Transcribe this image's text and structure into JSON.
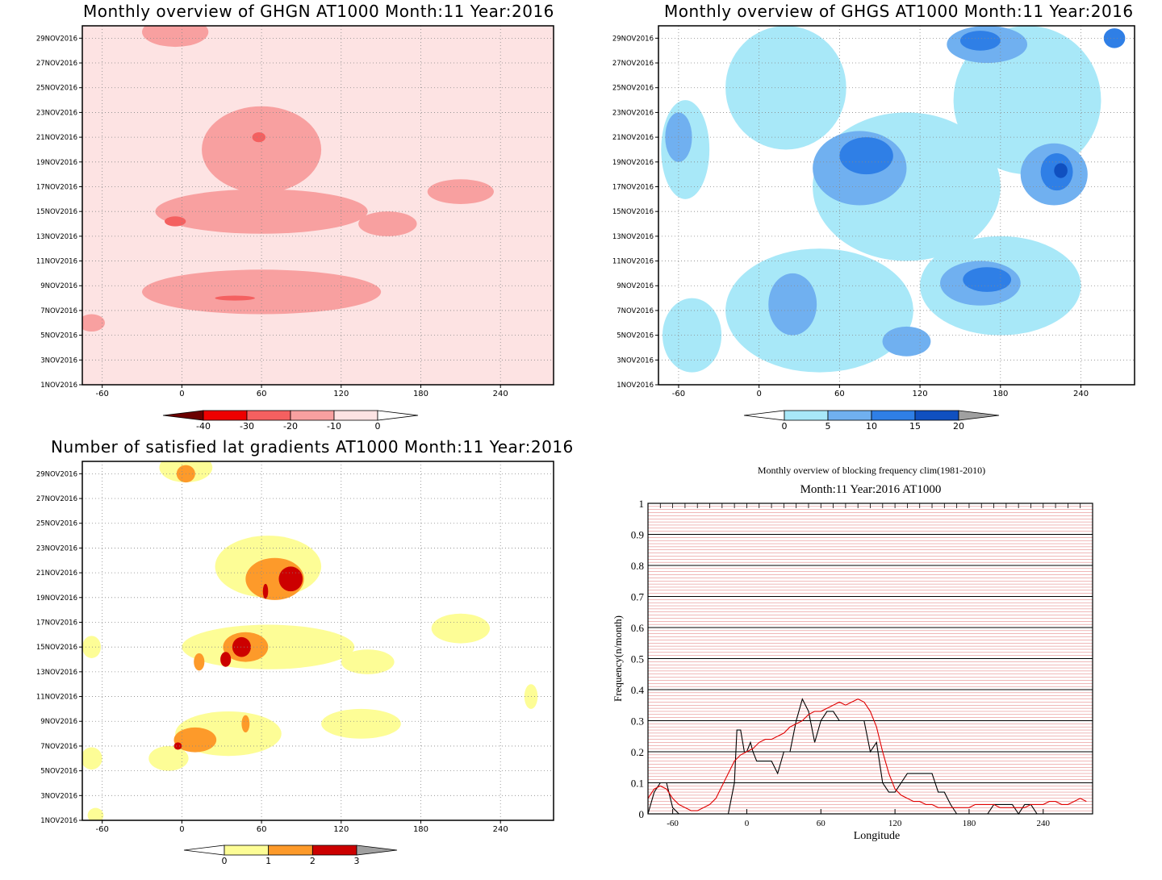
{
  "chart_data": [
    {
      "type": "heatmap",
      "title": "Monthly overview of GHGN AT1000 Month:11 Year:2016",
      "x_ticks": [
        "-60",
        "0",
        "60",
        "120",
        "180",
        "240"
      ],
      "y_ticks": [
        "1NOV2016",
        "3NOV2016",
        "5NOV2016",
        "7NOV2016",
        "9NOV2016",
        "11NOV2016",
        "13NOV2016",
        "15NOV2016",
        "17NOV2016",
        "19NOV2016",
        "21NOV2016",
        "23NOV2016",
        "25NOV2016",
        "27NOV2016",
        "29NOV2016"
      ],
      "xlim": [
        -75,
        280
      ],
      "ylim": [
        1,
        30
      ],
      "colorbar": {
        "ticks": [
          "-40",
          "-30",
          "-20",
          "-10",
          "0"
        ],
        "colors": [
          "#6b0000",
          "#ee0000",
          "#f46060",
          "#f8a0a0",
          "#fde3e3",
          "#ffffff"
        ]
      },
      "regions": [
        {
          "level": "-10",
          "color": "#f8a0a0",
          "cx": 60,
          "cy": 20,
          "rx": 45,
          "ry": 3.5
        },
        {
          "level": "-10",
          "color": "#f8a0a0",
          "cx": 60,
          "cy": 15,
          "rx": 80,
          "ry": 1.8
        },
        {
          "level": "-10",
          "color": "#f8a0a0",
          "cx": 60,
          "cy": 8.5,
          "rx": 90,
          "ry": 1.8
        },
        {
          "level": "-10",
          "color": "#f8a0a0",
          "cx": 210,
          "cy": 16.6,
          "rx": 25,
          "ry": 1
        },
        {
          "level": "-10",
          "color": "#f8a0a0",
          "cx": 155,
          "cy": 14,
          "rx": 22,
          "ry": 1
        },
        {
          "level": "-10",
          "color": "#f8a0a0",
          "cx": -5,
          "cy": 29.5,
          "rx": 25,
          "ry": 1.2
        },
        {
          "level": "-10",
          "color": "#f8a0a0",
          "cx": -68,
          "cy": 6,
          "rx": 10,
          "ry": 0.7
        },
        {
          "level": "-20",
          "color": "#f46060",
          "cx": -5,
          "cy": 14.2,
          "rx": 8,
          "ry": 0.4
        },
        {
          "level": "-20",
          "color": "#f46060",
          "cx": 58,
          "cy": 21,
          "rx": 5,
          "ry": 0.4
        },
        {
          "level": "-20",
          "color": "#f46060",
          "cx": 40,
          "cy": 8,
          "rx": 15,
          "ry": 0.2
        }
      ]
    },
    {
      "type": "heatmap",
      "title": "Monthly overview of GHGS AT1000 Month:11 Year:2016",
      "x_ticks": [
        "-60",
        "0",
        "60",
        "120",
        "180",
        "240"
      ],
      "y_ticks": [
        "1NOV2016",
        "3NOV2016",
        "5NOV2016",
        "7NOV2016",
        "9NOV2016",
        "11NOV2016",
        "13NOV2016",
        "15NOV2016",
        "17NOV2016",
        "19NOV2016",
        "21NOV2016",
        "23NOV2016",
        "25NOV2016",
        "27NOV2016",
        "29NOV2016"
      ],
      "xlim": [
        -75,
        280
      ],
      "ylim": [
        1,
        30
      ],
      "colorbar": {
        "ticks": [
          "0",
          "5",
          "10",
          "15",
          "20"
        ],
        "colors": [
          "#ffffff",
          "#a8e8f8",
          "#70b0f0",
          "#2f7fe6",
          "#1050c0",
          "#a0a0a0"
        ]
      },
      "regions": [
        {
          "level": "5",
          "color": "#a8e8f8",
          "cx": 20,
          "cy": 25,
          "rx": 45,
          "ry": 5
        },
        {
          "level": "5",
          "color": "#a8e8f8",
          "cx": 110,
          "cy": 17,
          "rx": 70,
          "ry": 6
        },
        {
          "level": "5",
          "color": "#a8e8f8",
          "cx": 45,
          "cy": 7,
          "rx": 70,
          "ry": 5
        },
        {
          "level": "5",
          "color": "#a8e8f8",
          "cx": 200,
          "cy": 24,
          "rx": 55,
          "ry": 6
        },
        {
          "level": "5",
          "color": "#a8e8f8",
          "cx": 180,
          "cy": 9,
          "rx": 60,
          "ry": 4
        },
        {
          "level": "5",
          "color": "#a8e8f8",
          "cx": -55,
          "cy": 20,
          "rx": 18,
          "ry": 4
        },
        {
          "level": "5",
          "color": "#a8e8f8",
          "cx": -50,
          "cy": 5,
          "rx": 22,
          "ry": 3
        },
        {
          "level": "10",
          "color": "#70b0f0",
          "cx": 75,
          "cy": 18.5,
          "rx": 35,
          "ry": 3
        },
        {
          "level": "10",
          "color": "#70b0f0",
          "cx": 25,
          "cy": 7.5,
          "rx": 18,
          "ry": 2.5
        },
        {
          "level": "10",
          "color": "#70b0f0",
          "cx": 165,
          "cy": 9.2,
          "rx": 30,
          "ry": 1.8
        },
        {
          "level": "10",
          "color": "#70b0f0",
          "cx": 220,
          "cy": 18,
          "rx": 25,
          "ry": 2.5
        },
        {
          "level": "10",
          "color": "#70b0f0",
          "cx": 170,
          "cy": 28.5,
          "rx": 30,
          "ry": 1.5
        },
        {
          "level": "10",
          "color": "#70b0f0",
          "cx": 110,
          "cy": 4.5,
          "rx": 18,
          "ry": 1.2
        },
        {
          "level": "10",
          "color": "#70b0f0",
          "cx": -60,
          "cy": 21,
          "rx": 10,
          "ry": 2
        },
        {
          "level": "15",
          "color": "#2f7fe6",
          "cx": 80,
          "cy": 19.5,
          "rx": 20,
          "ry": 1.5
        },
        {
          "level": "15",
          "color": "#2f7fe6",
          "cx": 170,
          "cy": 9.5,
          "rx": 18,
          "ry": 1
        },
        {
          "level": "15",
          "color": "#2f7fe6",
          "cx": 222,
          "cy": 18.2,
          "rx": 12,
          "ry": 1.5
        },
        {
          "level": "15",
          "color": "#2f7fe6",
          "cx": 165,
          "cy": 28.8,
          "rx": 15,
          "ry": 0.8
        },
        {
          "level": "15",
          "color": "#2f7fe6",
          "cx": 265,
          "cy": 29,
          "rx": 8,
          "ry": 0.8
        },
        {
          "level": "20",
          "color": "#1050c0",
          "cx": 225,
          "cy": 18.3,
          "rx": 5,
          "ry": 0.6
        }
      ]
    },
    {
      "type": "heatmap",
      "title": "Number of satisfied lat gradients AT1000 Month:11 Year:2016",
      "x_ticks": [
        "-60",
        "0",
        "60",
        "120",
        "180",
        "240"
      ],
      "y_ticks": [
        "1NOV2016",
        "3NOV2016",
        "5NOV2016",
        "7NOV2016",
        "9NOV2016",
        "11NOV2016",
        "13NOV2016",
        "15NOV2016",
        "17NOV2016",
        "19NOV2016",
        "21NOV2016",
        "23NOV2016",
        "25NOV2016",
        "27NOV2016",
        "29NOV2016"
      ],
      "xlim": [
        -75,
        280
      ],
      "ylim": [
        1,
        30
      ],
      "colorbar": {
        "ticks": [
          "0",
          "1",
          "2",
          "3"
        ],
        "colors": [
          "#ffffff",
          "#fdfd96",
          "#fd9a2a",
          "#cc0000",
          "#a0a0a0"
        ]
      },
      "regions": [
        {
          "level": "1",
          "color": "#fdfd96",
          "cx": 3,
          "cy": 29.5,
          "rx": 20,
          "ry": 1.2
        },
        {
          "level": "1",
          "color": "#fdfd96",
          "cx": 65,
          "cy": 21.5,
          "rx": 40,
          "ry": 2.5
        },
        {
          "level": "1",
          "color": "#fdfd96",
          "cx": 65,
          "cy": 15,
          "rx": 65,
          "ry": 1.8
        },
        {
          "level": "1",
          "color": "#fdfd96",
          "cx": 140,
          "cy": 13.8,
          "rx": 20,
          "ry": 1
        },
        {
          "level": "1",
          "color": "#fdfd96",
          "cx": 210,
          "cy": 16.5,
          "rx": 22,
          "ry": 1.2
        },
        {
          "level": "1",
          "color": "#fdfd96",
          "cx": 35,
          "cy": 8,
          "rx": 40,
          "ry": 1.8
        },
        {
          "level": "1",
          "color": "#fdfd96",
          "cx": -10,
          "cy": 6,
          "rx": 15,
          "ry": 1
        },
        {
          "level": "1",
          "color": "#fdfd96",
          "cx": 135,
          "cy": 8.8,
          "rx": 30,
          "ry": 1.2
        },
        {
          "level": "1",
          "color": "#fdfd96",
          "cx": -68,
          "cy": 6,
          "rx": 8,
          "ry": 0.9
        },
        {
          "level": "1",
          "color": "#fdfd96",
          "cx": -68,
          "cy": 15,
          "rx": 7,
          "ry": 0.9
        },
        {
          "level": "1",
          "color": "#fdfd96",
          "cx": 263,
          "cy": 11,
          "rx": 5,
          "ry": 1
        },
        {
          "level": "1",
          "color": "#fdfd96",
          "cx": -65,
          "cy": 1.4,
          "rx": 6,
          "ry": 0.6
        },
        {
          "level": "2",
          "color": "#fd9a2a",
          "cx": 70,
          "cy": 20.5,
          "rx": 22,
          "ry": 1.7
        },
        {
          "level": "2",
          "color": "#fd9a2a",
          "cx": 48,
          "cy": 15,
          "rx": 17,
          "ry": 1.2
        },
        {
          "level": "2",
          "color": "#fd9a2a",
          "cx": 3,
          "cy": 29,
          "rx": 7,
          "ry": 0.7
        },
        {
          "level": "2",
          "color": "#fd9a2a",
          "cx": 10,
          "cy": 7.5,
          "rx": 16,
          "ry": 1
        },
        {
          "level": "2",
          "color": "#fd9a2a",
          "cx": 13,
          "cy": 13.8,
          "rx": 4,
          "ry": 0.7
        },
        {
          "level": "2",
          "color": "#fd9a2a",
          "cx": 48,
          "cy": 8.8,
          "rx": 3,
          "ry": 0.7
        },
        {
          "level": "3",
          "color": "#cc0000",
          "cx": 82,
          "cy": 20.5,
          "rx": 9,
          "ry": 1
        },
        {
          "level": "3",
          "color": "#cc0000",
          "cx": 45,
          "cy": 15,
          "rx": 7,
          "ry": 0.8
        },
        {
          "level": "3",
          "color": "#cc0000",
          "cx": 33,
          "cy": 14,
          "rx": 4,
          "ry": 0.6
        },
        {
          "level": "3",
          "color": "#cc0000",
          "cx": 63,
          "cy": 19.5,
          "rx": 2,
          "ry": 0.6
        },
        {
          "level": "3",
          "color": "#cc0000",
          "cx": -3,
          "cy": 7,
          "rx": 3,
          "ry": 0.3
        }
      ]
    },
    {
      "type": "line",
      "title": "Monthly overview of blocking frequency clim(1981-2010)",
      "subtitle": "Month:11 Year:2016  AT1000",
      "xlabel": "Longitude",
      "ylabel": "Frequency(n/month)",
      "x_ticks": [
        "-60",
        "0",
        "60",
        "120",
        "180",
        "240"
      ],
      "y_ticks": [
        "0",
        "0.1",
        "0.2",
        "0.3",
        "0.4",
        "0.5",
        "0.6",
        "0.7",
        "0.8",
        "0.9",
        "1"
      ],
      "xlim": [
        -80,
        280
      ],
      "ylim": [
        0,
        1
      ],
      "grid": true,
      "series": [
        {
          "color": "#000000",
          "x": [
            -80,
            -75,
            -70,
            -65,
            -60,
            -55,
            -50,
            -45,
            -40,
            -35,
            -30,
            -25,
            -20,
            -15,
            -10,
            -8,
            -5,
            -2,
            0,
            3,
            5,
            8,
            10,
            15,
            20,
            25,
            30,
            35,
            40,
            45,
            50,
            55,
            60,
            65,
            70,
            75,
            80,
            85,
            90,
            95,
            100,
            105,
            110,
            115,
            120,
            125,
            130,
            135,
            140,
            145,
            150,
            155,
            160,
            165,
            170,
            175,
            180,
            185,
            190,
            195,
            200,
            205,
            210,
            215,
            220,
            225,
            230,
            235,
            240,
            245,
            250,
            255,
            260,
            265,
            270
          ],
          "y": [
            0,
            0.07,
            0.1,
            0.1,
            0.02,
            0,
            0,
            0,
            0,
            0,
            0,
            0,
            0,
            0,
            0.1,
            0.27,
            0.27,
            0.2,
            0.2,
            0.23,
            0.2,
            0.17,
            0.17,
            0.17,
            0.17,
            0.13,
            0.2,
            0.2,
            0.3,
            0.37,
            0.33,
            0.23,
            0.3,
            0.33,
            0.33,
            0.3,
            0.3,
            0.3,
            0.3,
            0.3,
            0.2,
            0.23,
            0.1,
            0.07,
            0.07,
            0.1,
            0.13,
            0.13,
            0.13,
            0.13,
            0.13,
            0.07,
            0.07,
            0.03,
            0,
            0,
            0,
            0,
            0,
            0,
            0.03,
            0.03,
            0.03,
            0.03,
            0,
            0.03,
            0.03,
            0,
            0,
            0,
            0,
            0,
            0,
            0,
            0
          ]
        },
        {
          "color": "#e00000",
          "x": [
            -80,
            -75,
            -70,
            -65,
            -60,
            -55,
            -50,
            -45,
            -40,
            -35,
            -30,
            -25,
            -20,
            -15,
            -10,
            -5,
            0,
            5,
            10,
            15,
            20,
            25,
            30,
            35,
            40,
            45,
            50,
            55,
            60,
            65,
            70,
            75,
            80,
            85,
            90,
            95,
            100,
            105,
            110,
            115,
            120,
            125,
            130,
            135,
            140,
            145,
            150,
            155,
            160,
            165,
            170,
            175,
            180,
            185,
            190,
            195,
            200,
            205,
            210,
            215,
            220,
            225,
            230,
            235,
            240,
            245,
            250,
            255,
            260,
            265,
            270,
            275
          ],
          "y": [
            0.05,
            0.08,
            0.09,
            0.08,
            0.05,
            0.03,
            0.02,
            0.01,
            0.01,
            0.02,
            0.03,
            0.05,
            0.09,
            0.13,
            0.17,
            0.19,
            0.2,
            0.21,
            0.23,
            0.24,
            0.24,
            0.25,
            0.26,
            0.28,
            0.29,
            0.3,
            0.32,
            0.33,
            0.33,
            0.34,
            0.35,
            0.36,
            0.35,
            0.36,
            0.37,
            0.36,
            0.33,
            0.28,
            0.2,
            0.13,
            0.08,
            0.06,
            0.05,
            0.04,
            0.04,
            0.03,
            0.03,
            0.02,
            0.02,
            0.02,
            0.02,
            0.02,
            0.02,
            0.03,
            0.03,
            0.03,
            0.03,
            0.02,
            0.02,
            0.02,
            0.02,
            0.02,
            0.03,
            0.03,
            0.03,
            0.04,
            0.04,
            0.03,
            0.03,
            0.04,
            0.05,
            0.04
          ]
        }
      ]
    }
  ]
}
